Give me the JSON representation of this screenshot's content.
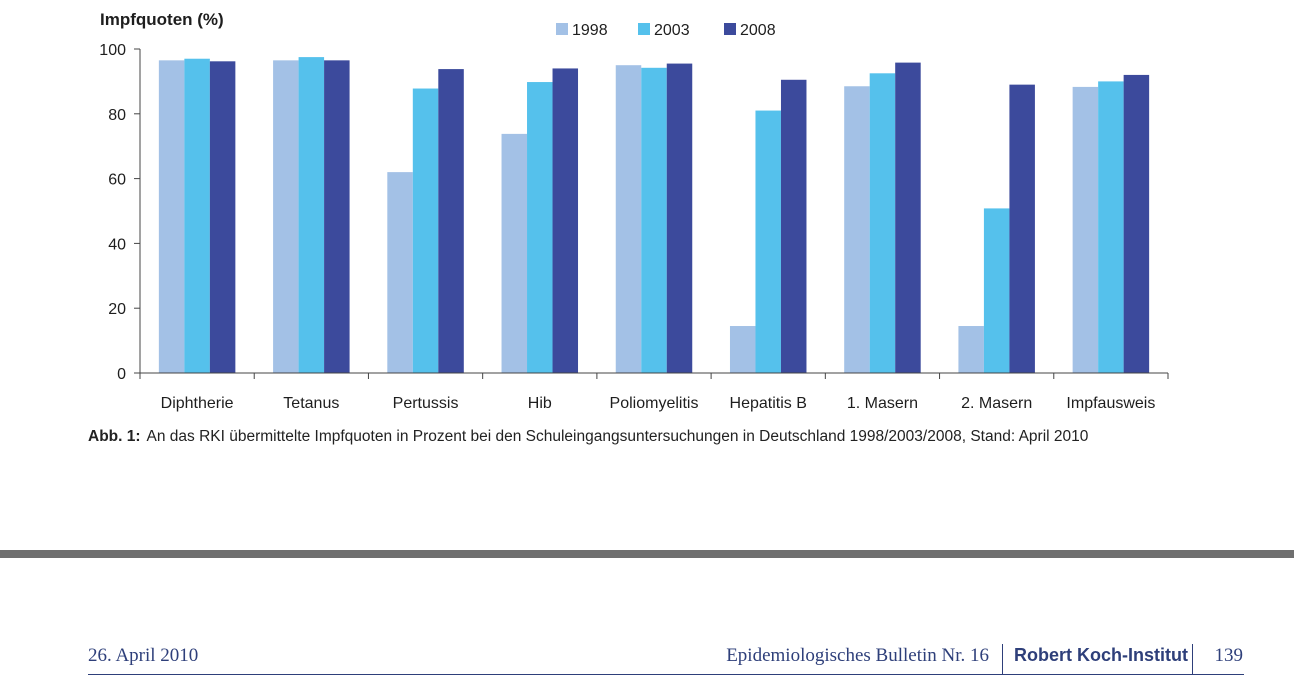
{
  "chart_data": {
    "type": "bar",
    "title": "",
    "ylabel": "Impfquoten (%)",
    "xlabel": "",
    "ylim": [
      0,
      100
    ],
    "yticks": [
      "0",
      "20",
      "40",
      "60",
      "80",
      "100"
    ],
    "grid": false,
    "legend_position": "top-center",
    "categories": [
      "Diphtherie",
      "Tetanus",
      "Pertussis",
      "Hib",
      "Poliomyelitis",
      "Hepatitis B",
      "1. Masern",
      "2. Masern",
      "Impfausweis"
    ],
    "series": [
      {
        "name": "1998",
        "color": "#a3c1e6",
        "values": [
          96.5,
          96.5,
          62,
          73.8,
          95,
          14.5,
          88.5,
          14.5,
          88.3
        ]
      },
      {
        "name": "2003",
        "color": "#55c1ec",
        "values": [
          97,
          97.5,
          87.8,
          89.8,
          94.2,
          81,
          92.5,
          50.8,
          90
        ]
      },
      {
        "name": "2008",
        "color": "#3c4a9c",
        "values": [
          96.2,
          96.5,
          93.8,
          94,
          95.5,
          90.5,
          95.8,
          89,
          92
        ]
      }
    ]
  },
  "caption": {
    "label": "Abb. 1:",
    "text": "An das RKI übermittelte Impfquoten in Prozent bei den Schuleingangsuntersuchungen in Deutschland 1998/2003/2008, Stand: April 2010"
  },
  "footer": {
    "date": "26. April 2010",
    "bulletin": "Epidemiologisches Bulletin Nr. 16",
    "institute": "Robert Koch-Institut",
    "page": "139"
  }
}
